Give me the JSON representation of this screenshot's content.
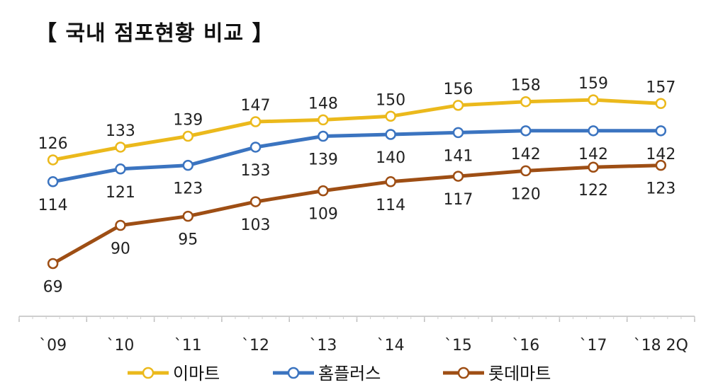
{
  "chart_data": {
    "type": "line",
    "title": "【 국내 점포현황 비교 】",
    "categories": [
      "`09",
      "`10",
      "`11",
      "`12",
      "`13",
      "`14",
      "`15",
      "`16",
      "`17",
      "`18 2Q"
    ],
    "series": [
      {
        "name": "이마트",
        "color": "#EBB91C",
        "label_position": "above",
        "values": [
          126,
          133,
          139,
          147,
          148,
          150,
          156,
          158,
          159,
          157
        ]
      },
      {
        "name": "홈플러스",
        "color": "#3B74C0",
        "label_position": "below",
        "values": [
          114,
          121,
          123,
          133,
          139,
          140,
          141,
          142,
          142,
          142
        ]
      },
      {
        "name": "롯데마트",
        "color": "#9E4E14",
        "label_position": "below",
        "values": [
          69,
          90,
          95,
          103,
          109,
          114,
          117,
          120,
          122,
          123
        ]
      }
    ],
    "ylim": [
      40,
      175
    ],
    "grid": false,
    "legend_position": "bottom"
  }
}
